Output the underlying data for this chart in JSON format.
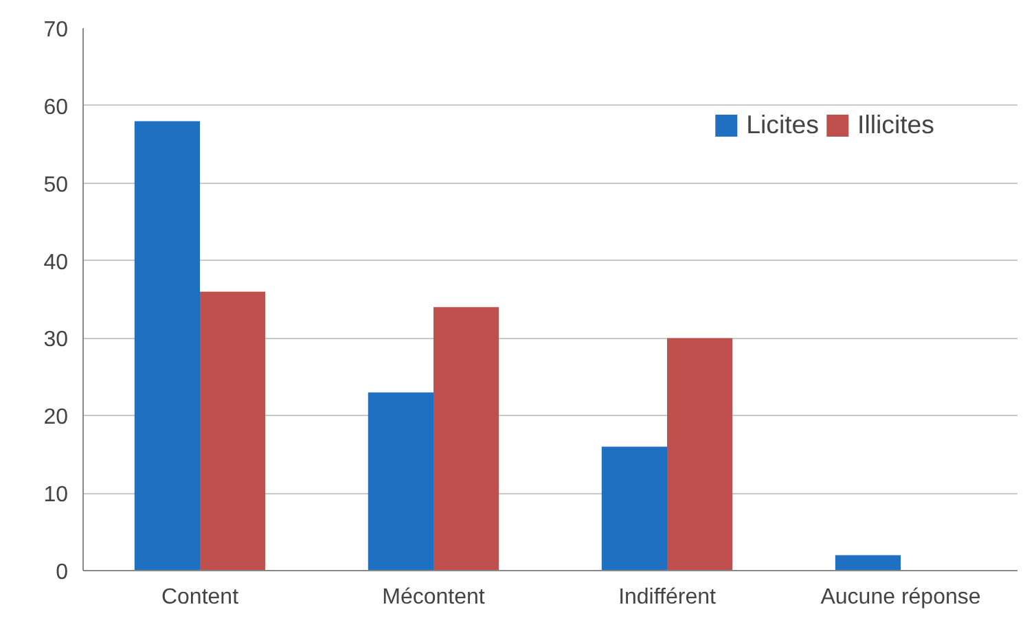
{
  "chart_data": {
    "type": "bar",
    "categories": [
      "Content",
      "Mécontent",
      "Indifférent",
      "Aucune réponse"
    ],
    "series": [
      {
        "name": "Licites",
        "color": "#1f70c1",
        "values": [
          58,
          23,
          16,
          2
        ]
      },
      {
        "name": "Illicites",
        "color": "#c0504d",
        "values": [
          36,
          34,
          30,
          null
        ]
      }
    ],
    "ylim": [
      0,
      70
    ],
    "yticks": [
      0,
      10,
      20,
      30,
      40,
      50,
      60,
      70
    ],
    "grid": "y",
    "legend": "top right"
  }
}
